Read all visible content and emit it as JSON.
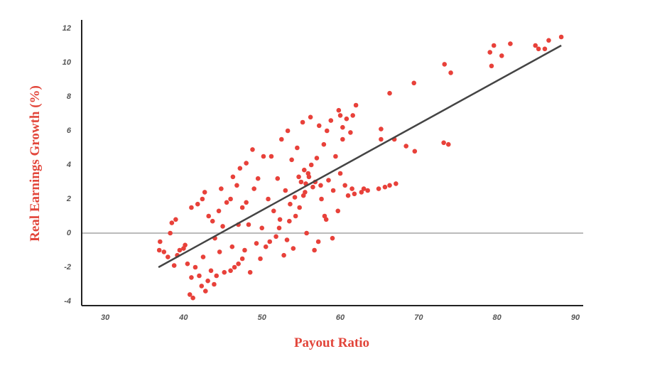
{
  "chart_data": {
    "type": "scatter",
    "x_label": "Payout Ratio",
    "y_label": "Real Earnings Growth (%)",
    "xlim": [
      27,
      91
    ],
    "ylim": [
      -4.25,
      12.5
    ],
    "xticks": [
      30,
      40,
      50,
      60,
      70,
      80,
      90
    ],
    "yticks": [
      -4,
      -2,
      0,
      2,
      4,
      6,
      8,
      10,
      12
    ],
    "color": "#e8413a",
    "zero_line": 0,
    "trend_line": {
      "x": [
        36.8,
        88.2
      ],
      "y": [
        -2.0,
        11.0
      ],
      "color": "#444444"
    },
    "x": [
      66.3,
      69.4,
      73.3,
      74.1,
      79.1,
      79.6,
      79.3,
      80.6,
      81.7,
      84.9,
      85.3,
      86.1,
      86.6,
      88.2,
      73.2,
      73.8,
      68.4,
      69.5,
      66.9,
      65.2,
      65.2,
      66.3,
      67.1,
      65.7,
      64.9,
      63.5,
      62.7,
      63.0,
      61.5,
      61.8,
      62.0,
      61.6,
      60.8,
      59.8,
      60.3,
      37.0,
      37.5,
      38.0,
      38.3,
      38.5,
      39.0,
      39.5,
      40.2,
      40.5,
      40.8,
      41.2,
      41.0,
      41.5,
      42.0,
      42.3,
      42.8,
      43.1,
      43.5,
      43.9,
      44.2,
      42.5,
      41.0,
      41.8,
      42.4,
      42.7,
      43.2,
      43.7,
      44.0,
      44.6,
      45.0,
      45.2,
      46.0,
      46.5,
      47.0,
      47.5,
      47.8,
      45.5,
      46.0,
      46.3,
      46.8,
      47.2,
      47.5,
      48.0,
      48.3,
      48.8,
      49.0,
      49.3,
      49.5,
      50.0,
      50.2,
      50.5,
      50.8,
      51.2,
      51.5,
      51.8,
      52.0,
      52.3,
      52.5,
      52.8,
      53.0,
      53.3,
      53.5,
      53.8,
      54.0,
      54.2,
      54.5,
      54.8,
      55.0,
      55.2,
      55.5,
      55.7,
      55.9,
      56.2,
      56.5,
      56.7,
      57.0,
      57.3,
      57.6,
      57.9,
      58.2,
      58.5,
      58.8,
      59.1,
      59.4,
      59.7,
      60.0,
      60.3,
      60.6,
      61.0,
      56.0,
      55.6,
      56.8,
      55.3,
      57.5,
      54.3,
      53.6,
      52.2,
      51.0,
      49.8,
      48.5,
      48.0,
      47.0,
      44.5,
      40.0,
      39.2,
      38.8,
      36.9,
      44.8,
      46.2,
      58.0,
      59.0,
      57.2,
      53.2,
      55.4,
      56.3,
      54.7,
      58.3,
      60.0,
      61.3
    ],
    "values": [
      8.2,
      8.8,
      9.9,
      9.4,
      10.6,
      11.0,
      9.8,
      10.4,
      11.1,
      11.0,
      10.8,
      10.8,
      11.3,
      11.5,
      5.3,
      5.2,
      5.1,
      4.8,
      5.5,
      6.1,
      5.5,
      2.8,
      2.9,
      2.7,
      2.6,
      2.5,
      2.4,
      2.6,
      2.6,
      2.3,
      7.5,
      6.9,
      6.7,
      7.2,
      6.2,
      -0.5,
      -1.1,
      -1.4,
      0.0,
      0.6,
      0.8,
      -1.0,
      -0.7,
      -1.8,
      -3.6,
      -3.8,
      -2.6,
      -2.0,
      -2.5,
      -3.1,
      -3.4,
      -2.8,
      -2.2,
      -3.0,
      -2.5,
      -1.4,
      1.5,
      1.7,
      2.0,
      2.4,
      1.0,
      0.7,
      -0.3,
      -1.1,
      0.4,
      -2.3,
      -2.2,
      -2.0,
      -1.8,
      -1.5,
      -1.0,
      1.8,
      2.0,
      3.3,
      2.8,
      3.8,
      1.5,
      4.1,
      0.5,
      4.9,
      2.6,
      -0.6,
      3.2,
      0.3,
      4.5,
      -0.8,
      2.0,
      4.5,
      1.3,
      -0.2,
      3.2,
      0.8,
      5.5,
      -1.3,
      2.5,
      6.0,
      0.7,
      4.3,
      -0.9,
      2.1,
      5.0,
      1.5,
      3.0,
      6.5,
      2.4,
      0.0,
      3.5,
      6.8,
      2.7,
      -1.0,
      4.4,
      6.3,
      2.0,
      5.2,
      0.8,
      3.1,
      6.6,
      2.5,
      4.5,
      1.3,
      3.5,
      5.5,
      2.8,
      2.2,
      3.3,
      2.9,
      3.0,
      2.2,
      2.8,
      1.0,
      1.7,
      0.3,
      -0.5,
      -1.5,
      -2.3,
      1.8,
      0.5,
      1.3,
      -0.9,
      -1.3,
      -1.9,
      -1.0,
      2.6,
      -0.8,
      1.0,
      -0.3,
      -0.5,
      -0.4,
      3.7,
      4.0,
      3.3,
      6.0,
      6.9,
      5.9
    ]
  }
}
